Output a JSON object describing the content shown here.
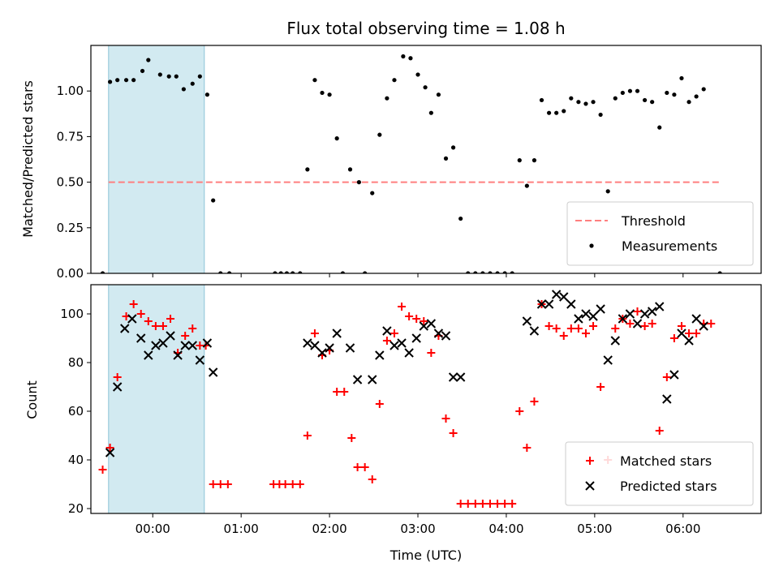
{
  "chart_data": [
    {
      "type": "scatter",
      "title": "Flux total observing time = 1.08 h",
      "xlabel": "",
      "ylabel": "Matched/Predicted stars",
      "ylim": [
        0,
        1.25
      ],
      "yticks": [
        "0.00",
        "0.25",
        "0.50",
        "0.75",
        "1.00"
      ],
      "xlim": [
        "-00:42",
        "06:53"
      ],
      "xticks": [
        "00:00",
        "01:00",
        "02:00",
        "03:00",
        "04:00",
        "05:00",
        "06:00"
      ],
      "shaded_span": [
        "-00:30",
        "00:35"
      ],
      "shade_color": "#add8e6",
      "legend_position": "lower right",
      "threshold": {
        "name": "Threshold",
        "value": 0.5,
        "x_from": "-00:30",
        "x_to": "06:25",
        "color": "#ff7f7f",
        "style": "dashed"
      },
      "series": [
        {
          "name": "Measurements",
          "color": "#000000",
          "marker": "dot",
          "points": [
            [
              "-00:34",
              0.0
            ],
            [
              "-00:29",
              1.05
            ],
            [
              "-00:24",
              1.06
            ],
            [
              "-00:18",
              1.06
            ],
            [
              "-00:13",
              1.06
            ],
            [
              "-00:07",
              1.11
            ],
            [
              "-00:03",
              1.17
            ],
            [
              "00:05",
              1.09
            ],
            [
              "00:11",
              1.08
            ],
            [
              "00:16",
              1.08
            ],
            [
              "00:21",
              1.01
            ],
            [
              "00:27",
              1.04
            ],
            [
              "00:32",
              1.08
            ],
            [
              "00:37",
              0.98
            ],
            [
              "00:41",
              0.4
            ],
            [
              "00:46",
              0.0
            ],
            [
              "00:52",
              0.0
            ],
            [
              "01:23",
              0.0
            ],
            [
              "01:27",
              0.0
            ],
            [
              "01:31",
              0.0
            ],
            [
              "01:35",
              0.0
            ],
            [
              "01:40",
              0.0
            ],
            [
              "01:45",
              0.57
            ],
            [
              "01:50",
              1.06
            ],
            [
              "01:55",
              0.99
            ],
            [
              "02:00",
              0.98
            ],
            [
              "02:05",
              0.74
            ],
            [
              "02:09",
              0.0
            ],
            [
              "02:14",
              0.57
            ],
            [
              "02:20",
              0.5
            ],
            [
              "02:24",
              0.0
            ],
            [
              "02:29",
              0.44
            ],
            [
              "02:34",
              0.76
            ],
            [
              "02:39",
              0.96
            ],
            [
              "02:44",
              1.06
            ],
            [
              "02:50",
              1.19
            ],
            [
              "02:55",
              1.18
            ],
            [
              "03:00",
              1.09
            ],
            [
              "03:05",
              1.02
            ],
            [
              "03:09",
              0.88
            ],
            [
              "03:14",
              0.98
            ],
            [
              "03:19",
              0.63
            ],
            [
              "03:24",
              0.69
            ],
            [
              "03:29",
              0.3
            ],
            [
              "03:34",
              0.0
            ],
            [
              "03:39",
              0.0
            ],
            [
              "03:44",
              0.0
            ],
            [
              "03:49",
              0.0
            ],
            [
              "03:54",
              0.0
            ],
            [
              "03:59",
              0.0
            ],
            [
              "04:04",
              0.0
            ],
            [
              "04:09",
              0.62
            ],
            [
              "04:14",
              0.48
            ],
            [
              "04:19",
              0.62
            ],
            [
              "04:24",
              0.95
            ],
            [
              "04:29",
              0.88
            ],
            [
              "04:34",
              0.88
            ],
            [
              "04:39",
              0.89
            ],
            [
              "04:44",
              0.96
            ],
            [
              "04:49",
              0.94
            ],
            [
              "04:54",
              0.93
            ],
            [
              "04:59",
              0.94
            ],
            [
              "05:04",
              0.87
            ],
            [
              "05:09",
              0.45
            ],
            [
              "05:14",
              0.96
            ],
            [
              "05:19",
              0.99
            ],
            [
              "05:24",
              1.0
            ],
            [
              "05:29",
              1.0
            ],
            [
              "05:34",
              0.95
            ],
            [
              "05:39",
              0.94
            ],
            [
              "05:44",
              0.8
            ],
            [
              "05:49",
              0.99
            ],
            [
              "05:54",
              0.98
            ],
            [
              "05:59",
              1.07
            ],
            [
              "06:04",
              0.94
            ],
            [
              "06:09",
              0.97
            ],
            [
              "06:14",
              1.01
            ],
            [
              "06:25",
              0.0
            ]
          ]
        }
      ]
    },
    {
      "type": "scatter",
      "title": "",
      "xlabel": "Time (UTC)",
      "ylabel": "Count",
      "ylim": [
        18,
        112
      ],
      "yticks": [
        "20",
        "40",
        "60",
        "80",
        "100"
      ],
      "xlim": [
        "-00:42",
        "06:53"
      ],
      "xticks": [
        "00:00",
        "01:00",
        "02:00",
        "03:00",
        "04:00",
        "05:00",
        "06:00"
      ],
      "shaded_span": [
        "-00:30",
        "00:35"
      ],
      "shade_color": "#add8e6",
      "legend_position": "lower right",
      "series": [
        {
          "name": "Matched stars",
          "color": "#ff0000",
          "marker": "plus",
          "points": [
            [
              "-00:34",
              36
            ],
            [
              "-00:29",
              45
            ],
            [
              "-00:24",
              74
            ],
            [
              "-00:18",
              99
            ],
            [
              "-00:13",
              104
            ],
            [
              "-00:08",
              100
            ],
            [
              "-00:03",
              97
            ],
            [
              "00:02",
              95
            ],
            [
              "00:07",
              95
            ],
            [
              "00:12",
              98
            ],
            [
              "00:17",
              84
            ],
            [
              "00:22",
              91
            ],
            [
              "00:27",
              94
            ],
            [
              "00:32",
              87
            ],
            [
              "00:36",
              87
            ],
            [
              "00:41",
              30
            ],
            [
              "00:46",
              30
            ],
            [
              "00:51",
              30
            ],
            [
              "01:22",
              30
            ],
            [
              "01:26",
              30
            ],
            [
              "01:30",
              30
            ],
            [
              "01:35",
              30
            ],
            [
              "01:40",
              30
            ],
            [
              "01:45",
              50
            ],
            [
              "01:50",
              92
            ],
            [
              "01:55",
              83
            ],
            [
              "02:00",
              85
            ],
            [
              "02:05",
              68
            ],
            [
              "02:10",
              68
            ],
            [
              "02:15",
              49
            ],
            [
              "02:19",
              37
            ],
            [
              "02:24",
              37
            ],
            [
              "02:29",
              32
            ],
            [
              "02:34",
              63
            ],
            [
              "02:39",
              89
            ],
            [
              "02:44",
              92
            ],
            [
              "02:49",
              103
            ],
            [
              "02:54",
              99
            ],
            [
              "02:59",
              98
            ],
            [
              "03:04",
              97
            ],
            [
              "03:09",
              84
            ],
            [
              "03:14",
              91
            ],
            [
              "03:19",
              57
            ],
            [
              "03:24",
              51
            ],
            [
              "03:29",
              22
            ],
            [
              "03:34",
              22
            ],
            [
              "03:39",
              22
            ],
            [
              "03:44",
              22
            ],
            [
              "03:49",
              22
            ],
            [
              "03:54",
              22
            ],
            [
              "03:59",
              22
            ],
            [
              "04:04",
              22
            ],
            [
              "04:09",
              60
            ],
            [
              "04:14",
              45
            ],
            [
              "04:19",
              64
            ],
            [
              "04:24",
              104
            ],
            [
              "04:29",
              95
            ],
            [
              "04:34",
              94
            ],
            [
              "04:39",
              91
            ],
            [
              "04:44",
              94
            ],
            [
              "04:49",
              94
            ],
            [
              "04:54",
              92
            ],
            [
              "04:59",
              95
            ],
            [
              "05:04",
              70
            ],
            [
              "05:09",
              40
            ],
            [
              "05:14",
              94
            ],
            [
              "05:19",
              98
            ],
            [
              "05:24",
              96
            ],
            [
              "05:29",
              101
            ],
            [
              "05:34",
              95
            ],
            [
              "05:39",
              96
            ],
            [
              "05:44",
              52
            ],
            [
              "05:49",
              74
            ],
            [
              "05:54",
              90
            ],
            [
              "05:59",
              95
            ],
            [
              "06:04",
              92
            ],
            [
              "06:09",
              92
            ],
            [
              "06:14",
              96
            ],
            [
              "06:19",
              96
            ]
          ]
        },
        {
          "name": "Predicted stars",
          "color": "#000000",
          "marker": "x",
          "points": [
            [
              "-00:29",
              43
            ],
            [
              "-00:24",
              70
            ],
            [
              "-00:19",
              94
            ],
            [
              "-00:14",
              98
            ],
            [
              "-00:08",
              90
            ],
            [
              "-00:03",
              83
            ],
            [
              "00:02",
              87
            ],
            [
              "00:07",
              88
            ],
            [
              "00:12",
              91
            ],
            [
              "00:17",
              83
            ],
            [
              "00:22",
              87
            ],
            [
              "00:27",
              87
            ],
            [
              "00:32",
              81
            ],
            [
              "00:37",
              88
            ],
            [
              "00:41",
              76
            ],
            [
              "01:45",
              88
            ],
            [
              "01:50",
              87
            ],
            [
              "01:55",
              84
            ],
            [
              "02:00",
              86
            ],
            [
              "02:05",
              92
            ],
            [
              "02:14",
              86
            ],
            [
              "02:19",
              73
            ],
            [
              "02:29",
              73
            ],
            [
              "02:34",
              83
            ],
            [
              "02:39",
              93
            ],
            [
              "02:44",
              87
            ],
            [
              "02:49",
              88
            ],
            [
              "02:54",
              84
            ],
            [
              "02:59",
              90
            ],
            [
              "03:04",
              95
            ],
            [
              "03:09",
              96
            ],
            [
              "03:14",
              92
            ],
            [
              "03:19",
              91
            ],
            [
              "03:24",
              74
            ],
            [
              "03:29",
              74
            ],
            [
              "04:14",
              97
            ],
            [
              "04:19",
              93
            ],
            [
              "04:24",
              104
            ],
            [
              "04:29",
              104
            ],
            [
              "04:34",
              108
            ],
            [
              "04:39",
              107
            ],
            [
              "04:44",
              104
            ],
            [
              "04:49",
              98
            ],
            [
              "04:54",
              100
            ],
            [
              "04:59",
              99
            ],
            [
              "05:04",
              102
            ],
            [
              "05:09",
              81
            ],
            [
              "05:14",
              89
            ],
            [
              "05:19",
              98
            ],
            [
              "05:24",
              100
            ],
            [
              "05:29",
              96
            ],
            [
              "05:34",
              100
            ],
            [
              "05:39",
              101
            ],
            [
              "05:44",
              103
            ],
            [
              "05:49",
              65
            ],
            [
              "05:54",
              75
            ],
            [
              "05:59",
              92
            ],
            [
              "06:04",
              89
            ],
            [
              "06:09",
              98
            ],
            [
              "06:14",
              95
            ]
          ]
        }
      ]
    }
  ]
}
